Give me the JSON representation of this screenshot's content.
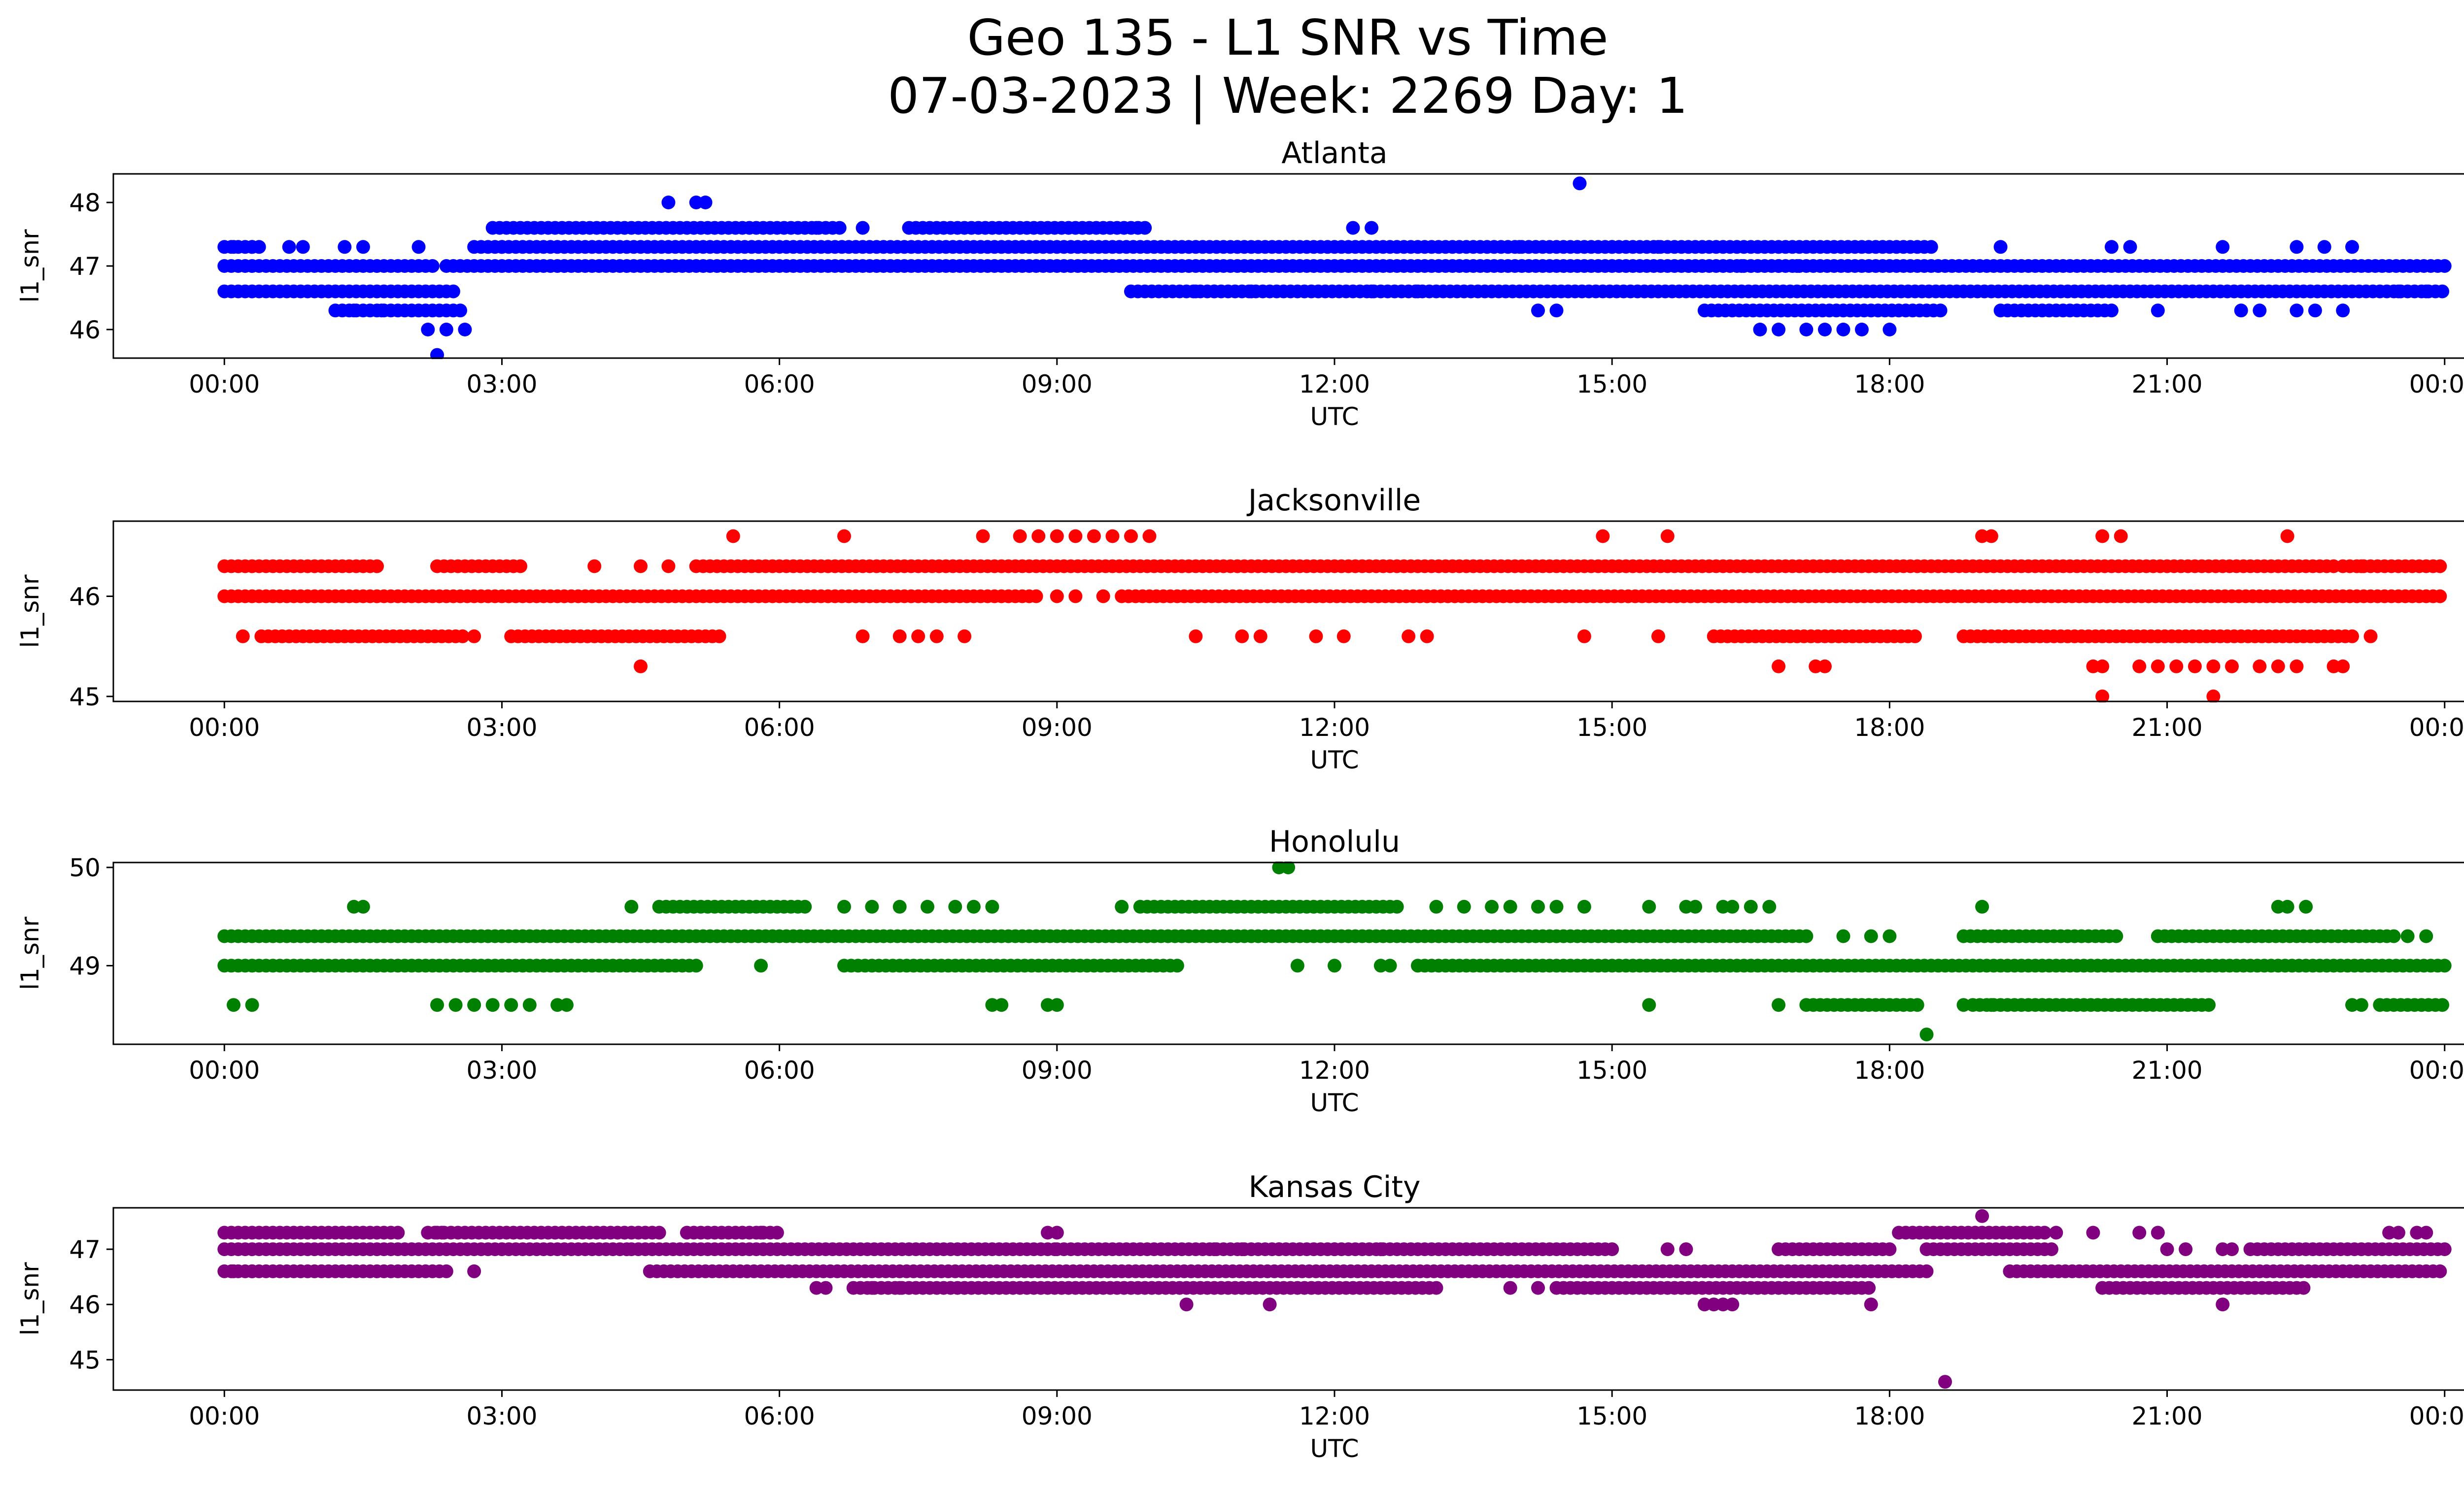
{
  "figure": {
    "title_line1": "Geo 135 - L1 SNR vs Time",
    "title_line2": "07-03-2023 | Week: 2269 Day: 1"
  },
  "chart_data": [
    {
      "type": "scatter",
      "title": "Atlanta",
      "xlabel": "UTC",
      "ylabel": "l1_snr",
      "color": "#0000ff",
      "xticks": [
        "00:00",
        "03:00",
        "06:00",
        "09:00",
        "12:00",
        "15:00",
        "18:00",
        "21:00",
        "00:00"
      ],
      "xlim_hours": [
        -1.2,
        25.2
      ],
      "ylim": [
        45.55,
        48.45
      ],
      "yticks": [
        46,
        47,
        48
      ],
      "bands": [
        {
          "y": 47.3,
          "segments": [
            [
              0,
              0.4
            ],
            [
              2.7,
              3.0
            ],
            [
              3.0,
              18.5
            ]
          ]
        },
        {
          "y": 47.0,
          "segments": [
            [
              0,
              2.3
            ],
            [
              2.4,
              24
            ]
          ]
        },
        {
          "y": 46.6,
          "segments": [
            [
              0,
              2.5
            ],
            [
              9.8,
              24
            ]
          ]
        },
        {
          "y": 46.3,
          "segments": [
            [
              1.2,
              2.6
            ],
            [
              16.0,
              18.6
            ],
            [
              19.2,
              20.4
            ]
          ]
        },
        {
          "y": 47.6,
          "segments": [
            [
              2.9,
              6.7
            ],
            [
              7.4,
              10.0
            ]
          ]
        }
      ],
      "points": [
        [
          0.1,
          47.3
        ],
        [
          0.3,
          47.3
        ],
        [
          0.7,
          47.3
        ],
        [
          0.85,
          47.3
        ],
        [
          1.3,
          47.3
        ],
        [
          1.5,
          47.3
        ],
        [
          2.1,
          47.3
        ],
        [
          1.4,
          46.3
        ],
        [
          1.7,
          46.3
        ],
        [
          2.2,
          46.0
        ],
        [
          2.4,
          46.0
        ],
        [
          2.6,
          46.0
        ],
        [
          2.3,
          45.6
        ],
        [
          4.8,
          48.0
        ],
        [
          5.1,
          48.0
        ],
        [
          5.2,
          48.0
        ],
        [
          6.4,
          47.6
        ],
        [
          6.9,
          47.6
        ],
        [
          12.2,
          47.6
        ],
        [
          12.4,
          47.6
        ],
        [
          14.65,
          48.3
        ],
        [
          10.5,
          46.6
        ],
        [
          10.7,
          46.6
        ],
        [
          11.1,
          46.6
        ],
        [
          12.4,
          46.6
        ],
        [
          12.9,
          46.6
        ],
        [
          14.2,
          46.3
        ],
        [
          14.4,
          46.3
        ],
        [
          16.6,
          46.0
        ],
        [
          16.8,
          46.0
        ],
        [
          17.1,
          46.0
        ],
        [
          17.3,
          46.0
        ],
        [
          17.5,
          46.0
        ],
        [
          17.7,
          46.0
        ],
        [
          18.0,
          46.0
        ],
        [
          16.4,
          47.0
        ],
        [
          16.8,
          47.0
        ],
        [
          17.0,
          47.0
        ],
        [
          15.0,
          47.3
        ],
        [
          15.5,
          47.3
        ],
        [
          19.2,
          47.3
        ],
        [
          20.4,
          47.3
        ],
        [
          20.6,
          47.3
        ],
        [
          21.6,
          47.3
        ],
        [
          20.9,
          46.3
        ],
        [
          21.8,
          46.3
        ],
        [
          22.0,
          46.3
        ],
        [
          22.4,
          46.3
        ],
        [
          22.6,
          46.3
        ],
        [
          22.9,
          46.3
        ],
        [
          22.4,
          47.3
        ],
        [
          22.7,
          47.3
        ],
        [
          23.0,
          47.3
        ],
        [
          23.5,
          46.6
        ],
        [
          23.8,
          46.6
        ],
        [
          9.3,
          47.0
        ],
        [
          9.6,
          47.0
        ],
        [
          14.0,
          47.3
        ]
      ]
    },
    {
      "type": "scatter",
      "title": "Jacksonville",
      "xlabel": "UTC",
      "ylabel": "l1_snr",
      "color": "#ff0000",
      "xticks": [
        "00:00",
        "03:00",
        "06:00",
        "09:00",
        "12:00",
        "15:00",
        "18:00",
        "21:00",
        "00:00"
      ],
      "xlim_hours": [
        -1.2,
        25.2
      ],
      "ylim": [
        44.95,
        46.75
      ],
      "yticks": [
        45,
        46
      ],
      "bands": [
        {
          "y": 46.3,
          "segments": [
            [
              0,
              1.7
            ],
            [
              2.3,
              3.2
            ],
            [
              5.1,
              22.8
            ],
            [
              22.9,
              24
            ]
          ]
        },
        {
          "y": 46.0,
          "segments": [
            [
              0,
              8.8
            ],
            [
              9.7,
              24
            ]
          ]
        },
        {
          "y": 45.6,
          "segments": [
            [
              0.4,
              2.6
            ],
            [
              3.1,
              5.4
            ],
            [
              16.1,
              18.3
            ],
            [
              18.8,
              23.0
            ]
          ]
        }
      ],
      "points": [
        [
          0.2,
          45.6
        ],
        [
          2.7,
          45.6
        ],
        [
          4.0,
          46.3
        ],
        [
          4.5,
          46.3
        ],
        [
          4.8,
          46.3
        ],
        [
          4.5,
          45.3
        ],
        [
          5.5,
          46.6
        ],
        [
          6.7,
          46.6
        ],
        [
          8.2,
          46.6
        ],
        [
          8.6,
          46.6
        ],
        [
          8.8,
          46.6
        ],
        [
          9.0,
          46.6
        ],
        [
          9.2,
          46.6
        ],
        [
          9.4,
          46.6
        ],
        [
          9.6,
          46.6
        ],
        [
          9.8,
          46.6
        ],
        [
          10.0,
          46.6
        ],
        [
          6.9,
          45.6
        ],
        [
          7.3,
          45.6
        ],
        [
          7.5,
          45.6
        ],
        [
          7.7,
          45.6
        ],
        [
          8.0,
          45.6
        ],
        [
          9.0,
          46.0
        ],
        [
          9.2,
          46.0
        ],
        [
          9.5,
          46.0
        ],
        [
          10.5,
          45.6
        ],
        [
          11.0,
          45.6
        ],
        [
          11.2,
          45.6
        ],
        [
          11.8,
          45.6
        ],
        [
          12.1,
          45.6
        ],
        [
          12.8,
          45.6
        ],
        [
          13.0,
          45.6
        ],
        [
          14.7,
          45.6
        ],
        [
          15.5,
          45.6
        ],
        [
          14.9,
          46.6
        ],
        [
          15.6,
          46.6
        ],
        [
          19.0,
          46.6
        ],
        [
          19.1,
          46.6
        ],
        [
          20.3,
          46.6
        ],
        [
          20.5,
          46.6
        ],
        [
          22.3,
          46.6
        ],
        [
          16.8,
          45.3
        ],
        [
          17.2,
          45.3
        ],
        [
          17.3,
          45.3
        ],
        [
          20.2,
          45.3
        ],
        [
          20.3,
          45.3
        ],
        [
          20.7,
          45.3
        ],
        [
          20.9,
          45.3
        ],
        [
          21.1,
          45.3
        ],
        [
          21.3,
          45.3
        ],
        [
          21.5,
          45.3
        ],
        [
          21.7,
          45.3
        ],
        [
          22.0,
          45.3
        ],
        [
          22.2,
          45.3
        ],
        [
          22.4,
          45.3
        ],
        [
          22.8,
          45.3
        ],
        [
          22.9,
          45.3
        ],
        [
          20.3,
          45.0
        ],
        [
          21.5,
          45.0
        ],
        [
          23.1,
          46.3
        ],
        [
          23.2,
          45.6
        ]
      ]
    },
    {
      "type": "scatter",
      "title": "Honolulu",
      "xlabel": "UTC",
      "ylabel": "l1_snr",
      "color": "#008000",
      "xticks": [
        "00:00",
        "03:00",
        "06:00",
        "09:00",
        "12:00",
        "15:00",
        "18:00",
        "21:00",
        "00:00"
      ],
      "xlim_hours": [
        -1.2,
        25.2
      ],
      "ylim": [
        48.2,
        50.05
      ],
      "yticks": [
        49,
        50
      ],
      "bands": [
        {
          "y": 49.3,
          "segments": [
            [
              0,
              17.1
            ],
            [
              18.8,
              20.5
            ],
            [
              20.9,
              23.5
            ]
          ]
        },
        {
          "y": 49.0,
          "segments": [
            [
              0,
              5.1
            ],
            [
              6.7,
              10.3
            ],
            [
              12.9,
              24
            ]
          ]
        },
        {
          "y": 49.6,
          "segments": [
            [
              4.7,
              6.3
            ],
            [
              9.9,
              12.7
            ]
          ]
        },
        {
          "y": 48.6,
          "segments": [
            [
              17.1,
              18.3
            ],
            [
              18.9,
              21.5
            ],
            [
              23.3,
              24
            ]
          ]
        }
      ],
      "points": [
        [
          0.1,
          48.6
        ],
        [
          0.3,
          48.6
        ],
        [
          1.4,
          49.6
        ],
        [
          1.5,
          49.6
        ],
        [
          2.3,
          48.6
        ],
        [
          2.5,
          48.6
        ],
        [
          2.7,
          48.6
        ],
        [
          2.9,
          48.6
        ],
        [
          3.1,
          48.6
        ],
        [
          3.3,
          48.6
        ],
        [
          3.6,
          48.6
        ],
        [
          3.7,
          48.6
        ],
        [
          4.4,
          49.6
        ],
        [
          6.7,
          49.6
        ],
        [
          7.0,
          49.6
        ],
        [
          7.3,
          49.6
        ],
        [
          7.6,
          49.6
        ],
        [
          7.9,
          49.6
        ],
        [
          8.1,
          49.6
        ],
        [
          8.3,
          49.6
        ],
        [
          9.7,
          49.6
        ],
        [
          5.8,
          49.0
        ],
        [
          8.3,
          48.6
        ],
        [
          8.4,
          48.6
        ],
        [
          8.9,
          48.6
        ],
        [
          9.0,
          48.6
        ],
        [
          11.4,
          50.0
        ],
        [
          11.5,
          50.0
        ],
        [
          11.6,
          49.0
        ],
        [
          12.0,
          49.0
        ],
        [
          12.5,
          49.0
        ],
        [
          12.6,
          49.0
        ],
        [
          13.1,
          49.6
        ],
        [
          13.4,
          49.6
        ],
        [
          13.7,
          49.6
        ],
        [
          13.9,
          49.6
        ],
        [
          14.2,
          49.6
        ],
        [
          14.4,
          49.6
        ],
        [
          14.7,
          49.6
        ],
        [
          15.4,
          49.6
        ],
        [
          15.8,
          49.6
        ],
        [
          15.9,
          49.6
        ],
        [
          16.2,
          49.6
        ],
        [
          16.3,
          49.6
        ],
        [
          16.5,
          49.6
        ],
        [
          16.7,
          49.6
        ],
        [
          15.4,
          48.6
        ],
        [
          17.5,
          49.3
        ],
        [
          17.8,
          49.3
        ],
        [
          18.0,
          49.3
        ],
        [
          18.4,
          48.3
        ],
        [
          19.0,
          49.6
        ],
        [
          18.8,
          48.6
        ],
        [
          19.1,
          48.6
        ],
        [
          22.2,
          49.6
        ],
        [
          22.3,
          49.6
        ],
        [
          22.5,
          49.6
        ],
        [
          23.6,
          49.3
        ],
        [
          23.8,
          49.3
        ],
        [
          23.0,
          48.6
        ],
        [
          23.1,
          48.6
        ],
        [
          16.8,
          48.6
        ]
      ]
    },
    {
      "type": "scatter",
      "title": "Kansas City",
      "xlabel": "UTC",
      "ylabel": "l1_snr",
      "color": "#800080",
      "xticks": [
        "00:00",
        "03:00",
        "06:00",
        "09:00",
        "12:00",
        "15:00",
        "18:00",
        "21:00",
        "00:00"
      ],
      "xlim_hours": [
        -1.2,
        25.2
      ],
      "ylim": [
        44.45,
        47.75
      ],
      "yticks": [
        45,
        46,
        47
      ],
      "bands": [
        {
          "y": 47.3,
          "segments": [
            [
              0,
              1.9
            ],
            [
              2.2,
              2.4
            ],
            [
              2.3,
              4.7
            ],
            [
              5.0,
              6.0
            ],
            [
              18.1,
              19.7
            ]
          ]
        },
        {
          "y": 47.0,
          "segments": [
            [
              0,
              4.4
            ],
            [
              4.4,
              9.0
            ],
            [
              9.0,
              15.0
            ],
            [
              16.8,
              18.0
            ],
            [
              18.4,
              19.8
            ],
            [
              21.9,
              24
            ]
          ]
        },
        {
          "y": 46.6,
          "segments": [
            [
              0,
              2.4
            ],
            [
              4.6,
              18.4
            ],
            [
              19.3,
              24
            ]
          ]
        },
        {
          "y": 46.3,
          "segments": [
            [
              6.8,
              13.1
            ],
            [
              14.4,
              17.8
            ],
            [
              20.3,
              22.5
            ]
          ]
        }
      ],
      "points": [
        [
          0.1,
          46.6
        ],
        [
          0.3,
          46.6
        ],
        [
          2.7,
          46.6
        ],
        [
          5.8,
          47.3
        ],
        [
          8.9,
          47.3
        ],
        [
          9.0,
          47.3
        ],
        [
          10.7,
          47.0
        ],
        [
          11.4,
          47.0
        ],
        [
          12.0,
          47.0
        ],
        [
          12.5,
          47.0
        ],
        [
          10.4,
          46.0
        ],
        [
          11.3,
          46.0
        ],
        [
          13.9,
          46.3
        ],
        [
          14.2,
          46.3
        ],
        [
          16.0,
          46.0
        ],
        [
          16.1,
          46.0
        ],
        [
          16.2,
          46.0
        ],
        [
          16.3,
          46.0
        ],
        [
          17.8,
          46.0
        ],
        [
          15.6,
          47.0
        ],
        [
          15.8,
          47.0
        ],
        [
          18.6,
          44.6
        ],
        [
          19.0,
          47.6
        ],
        [
          19.8,
          47.3
        ],
        [
          20.2,
          47.3
        ],
        [
          20.7,
          47.3
        ],
        [
          20.9,
          47.3
        ],
        [
          21.0,
          47.0
        ],
        [
          21.2,
          47.0
        ],
        [
          21.6,
          46.0
        ],
        [
          23.4,
          47.3
        ],
        [
          23.5,
          47.3
        ],
        [
          23.7,
          47.3
        ],
        [
          23.8,
          47.3
        ],
        [
          6.4,
          46.3
        ],
        [
          6.5,
          46.3
        ],
        [
          7.0,
          46.3
        ],
        [
          7.3,
          46.3
        ],
        [
          11.0,
          47.0
        ],
        [
          21.6,
          47.0
        ],
        [
          21.7,
          47.0
        ]
      ]
    }
  ]
}
